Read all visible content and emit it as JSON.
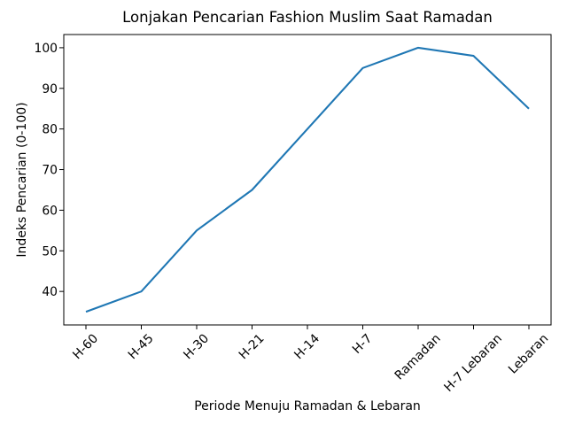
{
  "chart_data": {
    "type": "line",
    "title": "Lonjakan Pencarian Fashion Muslim Saat Ramadan",
    "xlabel": "Periode Menuju Ramadan & Lebaran",
    "ylabel": "Indeks Pencarian (0-100)",
    "categories": [
      "H-60",
      "H-45",
      "H-30",
      "H-21",
      "H-14",
      "H-7",
      "Ramadan",
      "H-7 Lebaran",
      "Lebaran"
    ],
    "values": [
      35,
      40,
      55,
      65,
      80,
      95,
      100,
      98,
      85
    ],
    "yticks": [
      40,
      50,
      60,
      70,
      80,
      90,
      100
    ],
    "ylim": [
      31.75,
      103.25
    ],
    "x_margin_units": 0.4,
    "x_tick_rotation_deg": 45,
    "grid": false,
    "legend_position": "none",
    "line_color": "#1f77b4",
    "line_width": 2.1,
    "axis_color": "#000000",
    "text_color": "#000000",
    "background_color": "#ffffff"
  }
}
